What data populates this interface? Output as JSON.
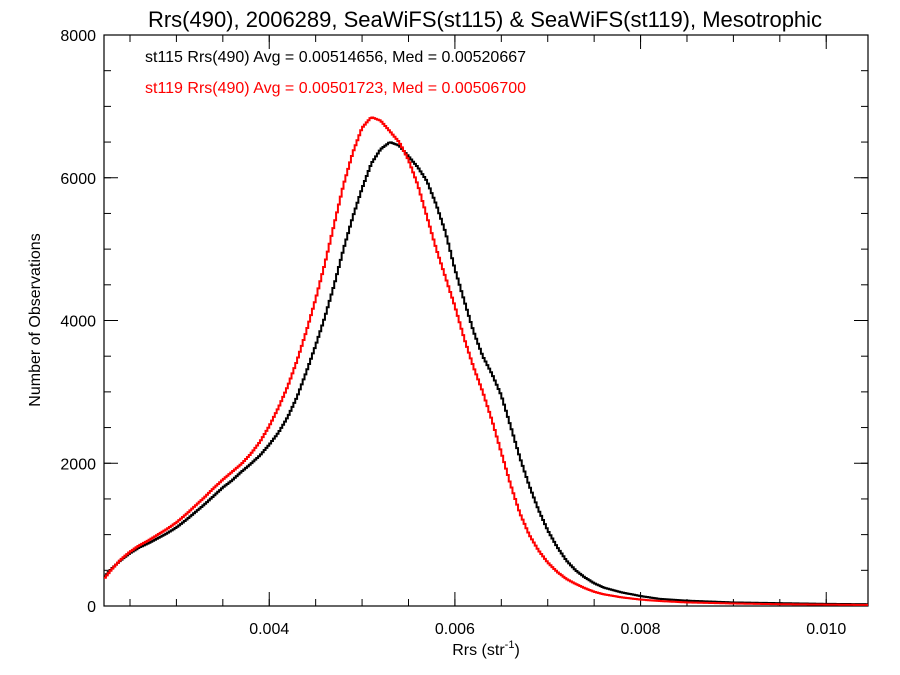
{
  "chart_data": {
    "type": "line",
    "style": "step histogram",
    "title": "Rrs(490), 2006289, SeaWiFS(st115) & SeaWiFS(st119), Mesotrophic",
    "xlabel": "Rrs (str",
    "xlabel_sup": "-1",
    "xlabel_close": ")",
    "ylabel": "Number of Observations",
    "xlim": [
      0.00222,
      0.01045
    ],
    "ylim": [
      0,
      8000
    ],
    "x_ticks": [
      {
        "value": 0.004,
        "label": "0.004"
      },
      {
        "value": 0.006,
        "label": "0.006"
      },
      {
        "value": 0.008,
        "label": "0.008"
      },
      {
        "value": 0.01,
        "label": "0.010"
      }
    ],
    "x_minor_step": 0.0005,
    "y_ticks": [
      {
        "value": 0,
        "label": "0"
      },
      {
        "value": 2000,
        "label": "2000"
      },
      {
        "value": 4000,
        "label": "4000"
      },
      {
        "value": 6000,
        "label": "6000"
      },
      {
        "value": 8000,
        "label": "8000"
      }
    ],
    "y_minor_step": 500,
    "grid": false,
    "bin_width": 2e-05,
    "series": [
      {
        "name": "st115",
        "color": "#000000",
        "legend": "st115 Rrs(490) Avg = 0.00514656, Med = 0.00520667",
        "points": [
          [
            0.00222,
            400
          ],
          [
            0.0023,
            520
          ],
          [
            0.0024,
            640
          ],
          [
            0.0025,
            740
          ],
          [
            0.0026,
            820
          ],
          [
            0.0027,
            880
          ],
          [
            0.0028,
            950
          ],
          [
            0.0029,
            1020
          ],
          [
            0.003,
            1100
          ],
          [
            0.0031,
            1200
          ],
          [
            0.0032,
            1310
          ],
          [
            0.0033,
            1420
          ],
          [
            0.0034,
            1540
          ],
          [
            0.0035,
            1660
          ],
          [
            0.0036,
            1760
          ],
          [
            0.0037,
            1880
          ],
          [
            0.0038,
            1990
          ],
          [
            0.0039,
            2110
          ],
          [
            0.004,
            2260
          ],
          [
            0.0041,
            2430
          ],
          [
            0.0042,
            2650
          ],
          [
            0.0043,
            2930
          ],
          [
            0.0044,
            3280
          ],
          [
            0.0045,
            3650
          ],
          [
            0.0046,
            4050
          ],
          [
            0.0047,
            4500
          ],
          [
            0.0048,
            5000
          ],
          [
            0.0049,
            5450
          ],
          [
            0.005,
            5850
          ],
          [
            0.0051,
            6200
          ],
          [
            0.0052,
            6400
          ],
          [
            0.0053,
            6500
          ],
          [
            0.0054,
            6450
          ],
          [
            0.0055,
            6300
          ],
          [
            0.0056,
            6150
          ],
          [
            0.0057,
            5950
          ],
          [
            0.0058,
            5620
          ],
          [
            0.0059,
            5230
          ],
          [
            0.006,
            4720
          ],
          [
            0.0061,
            4280
          ],
          [
            0.0062,
            3850
          ],
          [
            0.0063,
            3500
          ],
          [
            0.0064,
            3250
          ],
          [
            0.0065,
            2950
          ],
          [
            0.0066,
            2520
          ],
          [
            0.0067,
            2080
          ],
          [
            0.0068,
            1690
          ],
          [
            0.0069,
            1350
          ],
          [
            0.007,
            1060
          ],
          [
            0.0071,
            830
          ],
          [
            0.0072,
            640
          ],
          [
            0.0073,
            500
          ],
          [
            0.0074,
            400
          ],
          [
            0.0075,
            320
          ],
          [
            0.0076,
            260
          ],
          [
            0.0078,
            190
          ],
          [
            0.008,
            140
          ],
          [
            0.0082,
            100
          ],
          [
            0.0085,
            75
          ],
          [
            0.009,
            50
          ],
          [
            0.0095,
            40
          ],
          [
            0.01,
            30
          ],
          [
            0.01045,
            25
          ]
        ]
      },
      {
        "name": "st119",
        "color": "#ff0000",
        "legend": "st119 Rrs(490) Avg = 0.00501723, Med = 0.00506700",
        "points": [
          [
            0.00222,
            380
          ],
          [
            0.0023,
            510
          ],
          [
            0.0024,
            650
          ],
          [
            0.0025,
            760
          ],
          [
            0.0026,
            850
          ],
          [
            0.0027,
            920
          ],
          [
            0.0028,
            1000
          ],
          [
            0.0029,
            1080
          ],
          [
            0.003,
            1170
          ],
          [
            0.0031,
            1280
          ],
          [
            0.0032,
            1400
          ],
          [
            0.0033,
            1520
          ],
          [
            0.0034,
            1650
          ],
          [
            0.0035,
            1770
          ],
          [
            0.0036,
            1880
          ],
          [
            0.0037,
            1990
          ],
          [
            0.0038,
            2130
          ],
          [
            0.0039,
            2300
          ],
          [
            0.004,
            2520
          ],
          [
            0.0041,
            2780
          ],
          [
            0.0042,
            3080
          ],
          [
            0.0043,
            3440
          ],
          [
            0.0044,
            3850
          ],
          [
            0.0045,
            4300
          ],
          [
            0.0046,
            4800
          ],
          [
            0.0047,
            5350
          ],
          [
            0.0048,
            5900
          ],
          [
            0.0049,
            6350
          ],
          [
            0.005,
            6700
          ],
          [
            0.0051,
            6850
          ],
          [
            0.0052,
            6800
          ],
          [
            0.0053,
            6650
          ],
          [
            0.0054,
            6500
          ],
          [
            0.0055,
            6250
          ],
          [
            0.0056,
            5900
          ],
          [
            0.0057,
            5450
          ],
          [
            0.0058,
            5000
          ],
          [
            0.0059,
            4600
          ],
          [
            0.006,
            4200
          ],
          [
            0.0061,
            3750
          ],
          [
            0.0062,
            3350
          ],
          [
            0.0063,
            3000
          ],
          [
            0.0064,
            2600
          ],
          [
            0.0065,
            2150
          ],
          [
            0.0066,
            1700
          ],
          [
            0.0067,
            1300
          ],
          [
            0.0068,
            1000
          ],
          [
            0.0069,
            780
          ],
          [
            0.007,
            610
          ],
          [
            0.0071,
            480
          ],
          [
            0.0072,
            380
          ],
          [
            0.0073,
            310
          ],
          [
            0.0074,
            250
          ],
          [
            0.0075,
            200
          ],
          [
            0.0076,
            165
          ],
          [
            0.0078,
            120
          ],
          [
            0.008,
            90
          ],
          [
            0.0082,
            70
          ],
          [
            0.0085,
            50
          ],
          [
            0.009,
            35
          ],
          [
            0.0095,
            25
          ],
          [
            0.01,
            20
          ],
          [
            0.01045,
            15
          ]
        ]
      }
    ]
  }
}
